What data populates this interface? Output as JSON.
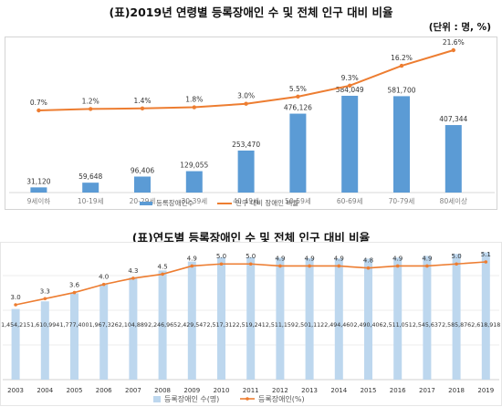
{
  "chart_data": [
    {
      "type": "bar",
      "title": "(표)2019년 연령별 등록장애인 수 및 전체 인구 대비 비율",
      "unit_note": "(단위 : 명, %)",
      "categories": [
        "9세이하",
        "10-19세",
        "20-29세",
        "30-39세",
        "40-49세",
        "50-59세",
        "60-69세",
        "70-79세",
        "80세이상"
      ],
      "series": [
        {
          "name": "등록장애인수",
          "type": "bar",
          "color": "#5b9bd5",
          "values": [
            31120,
            59648,
            96406,
            129055,
            253470,
            476126,
            584049,
            581700,
            407344
          ],
          "labels": [
            "31,120",
            "59,648",
            "96,406",
            "129,055",
            "253,470",
            "476,126",
            "584,049",
            "581,700",
            "407,344"
          ]
        },
        {
          "name": "인구 대비 장애인 비율",
          "type": "line",
          "color": "#ed7d31",
          "values": [
            0.7,
            1.2,
            1.4,
            1.8,
            3.0,
            5.5,
            9.3,
            16.2,
            21.6
          ],
          "labels": [
            "0.7%",
            "1.2%",
            "1.4%",
            "1.8%",
            "3.0%",
            "5.5%",
            "9.3%",
            "16.2%",
            "21.6%"
          ]
        }
      ],
      "legend_position": "bottom"
    },
    {
      "type": "bar",
      "title": "(표)연도별 등록장애인 수 및 전체 인구 대비 비율",
      "categories": [
        "2003",
        "2004",
        "2005",
        "2006",
        "2007",
        "2008",
        "2009",
        "2010",
        "2011",
        "2012",
        "2013",
        "2014",
        "2015",
        "2016",
        "2017",
        "2018",
        "2019"
      ],
      "series": [
        {
          "name": "등록장애인 수(명)",
          "type": "bar",
          "color": "#bdd7ee",
          "values": [
            1454215,
            1610994,
            1777400,
            1967326,
            2104889,
            2246965,
            2429547,
            2517312,
            2519241,
            2511159,
            2501112,
            2494460,
            2490406,
            2511051,
            2545637,
            2585876,
            2618918
          ],
          "labels": [
            "1,454,215",
            "1,610,994",
            "1,777,400",
            "1,967,326",
            "2,104,889",
            "2,246,965",
            "2,429,547",
            "2,517,312",
            "2,519,241",
            "2,511,159",
            "2,501,112",
            "2,494,460",
            "2,490,406",
            "2,511,051",
            "2,545,637",
            "2,585,876",
            "2,618,918"
          ]
        },
        {
          "name": "등록장애인(%)",
          "type": "line",
          "color": "#ed7d31",
          "values": [
            3.0,
            3.3,
            3.6,
            4.0,
            4.3,
            4.5,
            4.9,
            5.0,
            5.0,
            4.9,
            4.9,
            4.9,
            4.8,
            4.9,
            4.9,
            5.0,
            5.1
          ],
          "labels": [
            "3.0",
            "3.3",
            "3.6",
            "4.0",
            "4.3",
            "4.5",
            "4.9",
            "5.0",
            "5.0",
            "4.9",
            "4.9",
            "4.9",
            "4.8",
            "4.9",
            "4.9",
            "5.0",
            "5.1"
          ]
        }
      ],
      "legend_position": "bottom"
    }
  ]
}
